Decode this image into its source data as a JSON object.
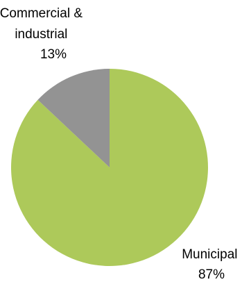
{
  "chart_data": {
    "type": "pie",
    "start_angle": "12 o'clock",
    "direction": "clockwise",
    "legend": "none",
    "slices": [
      {
        "label_lines": [
          "Municipal",
          "87%"
        ],
        "value": 87,
        "color": "#adc95a"
      },
      {
        "label_lines": [
          "Commercial &",
          "industrial",
          "13%"
        ],
        "value": 13,
        "color": "#939393"
      }
    ]
  }
}
